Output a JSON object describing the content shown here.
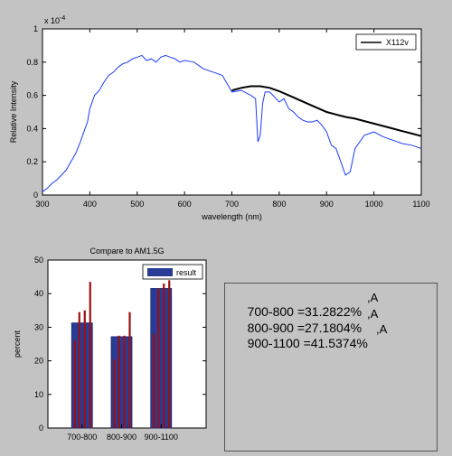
{
  "colors": {
    "background": "#c3c3c3",
    "axes_bg": "#ffffff",
    "spectrum": "#1a3cff",
    "fit": "#000000",
    "bar_fill": "#283c96",
    "bar_line": "#9b1010"
  },
  "chart_data": [
    {
      "type": "line",
      "title": "",
      "xlabel": "wavelength (nm)",
      "ylabel": "Relative Intensity",
      "exponent_label": "x 10^-4",
      "xlim": [
        300,
        1100
      ],
      "ylim": [
        0,
        1
      ],
      "x_ticks": [
        300,
        400,
        500,
        600,
        700,
        800,
        900,
        1000,
        1100
      ],
      "y_ticks": [
        0,
        0.2,
        0.4,
        0.6,
        0.8,
        1
      ],
      "legend": {
        "position": "top-right",
        "entries": [
          "X112v"
        ]
      },
      "series": [
        {
          "name": "",
          "x": [
            300,
            310,
            320,
            330,
            340,
            350,
            360,
            370,
            380,
            390,
            395,
            400,
            410,
            420,
            430,
            440,
            450,
            460,
            470,
            480,
            490,
            500,
            510,
            520,
            530,
            540,
            550,
            560,
            570,
            580,
            590,
            600,
            620,
            640,
            660,
            680,
            700,
            720,
            740,
            750,
            755,
            760,
            765,
            770,
            780,
            800,
            810,
            820,
            830,
            840,
            850,
            860,
            870,
            880,
            890,
            900,
            910,
            920,
            930,
            940,
            950,
            960,
            980,
            1000,
            1020,
            1040,
            1060,
            1080,
            1100
          ],
          "y": [
            0.02,
            0.04,
            0.07,
            0.09,
            0.12,
            0.15,
            0.2,
            0.25,
            0.32,
            0.4,
            0.44,
            0.52,
            0.6,
            0.63,
            0.68,
            0.72,
            0.74,
            0.77,
            0.79,
            0.8,
            0.82,
            0.83,
            0.84,
            0.81,
            0.82,
            0.8,
            0.83,
            0.84,
            0.83,
            0.82,
            0.8,
            0.81,
            0.8,
            0.76,
            0.74,
            0.72,
            0.62,
            0.63,
            0.6,
            0.58,
            0.32,
            0.36,
            0.55,
            0.62,
            0.62,
            0.56,
            0.58,
            0.52,
            0.5,
            0.47,
            0.45,
            0.44,
            0.44,
            0.45,
            0.42,
            0.38,
            0.3,
            0.28,
            0.2,
            0.12,
            0.14,
            0.28,
            0.36,
            0.38,
            0.35,
            0.33,
            0.31,
            0.3,
            0.28
          ]
        },
        {
          "name": "X112v",
          "x": [
            700,
            720,
            740,
            760,
            780,
            800,
            820,
            840,
            860,
            880,
            900,
            920,
            940,
            960,
            980,
            1000,
            1020,
            1040,
            1060,
            1080,
            1100
          ],
          "y": [
            0.63,
            0.645,
            0.655,
            0.655,
            0.645,
            0.625,
            0.6,
            0.575,
            0.55,
            0.525,
            0.5,
            0.485,
            0.47,
            0.46,
            0.445,
            0.43,
            0.415,
            0.4,
            0.385,
            0.37,
            0.355
          ]
        }
      ]
    },
    {
      "type": "bar",
      "title": "Compare to AM1.5G",
      "xlabel": "",
      "ylabel": "percent",
      "ylim": [
        0,
        50
      ],
      "y_ticks": [
        0,
        10,
        20,
        30,
        40,
        50
      ],
      "categories": [
        "700-800",
        "800-900",
        "900-1100"
      ],
      "legend": {
        "position": "top-right",
        "entries": [
          "result"
        ]
      },
      "series": [
        {
          "name": "result",
          "values": [
            31.2822,
            27.1804,
            41.5374
          ]
        }
      ],
      "reference_lines": [
        [
          26,
          34.5,
          35,
          43.5
        ],
        [
          20.5,
          27.5,
          27.5,
          34.5
        ],
        [
          28,
          41.5,
          43,
          44
        ]
      ]
    }
  ],
  "results_panel": {
    "lines": [
      {
        "text": "700-800 =31.2822%",
        "suffix": ",A"
      },
      {
        "text": "800-900 =27.1804%",
        "suffix": ",A"
      },
      {
        "text": "900-1100 =41.5374%",
        "suffix": ",A"
      }
    ]
  }
}
